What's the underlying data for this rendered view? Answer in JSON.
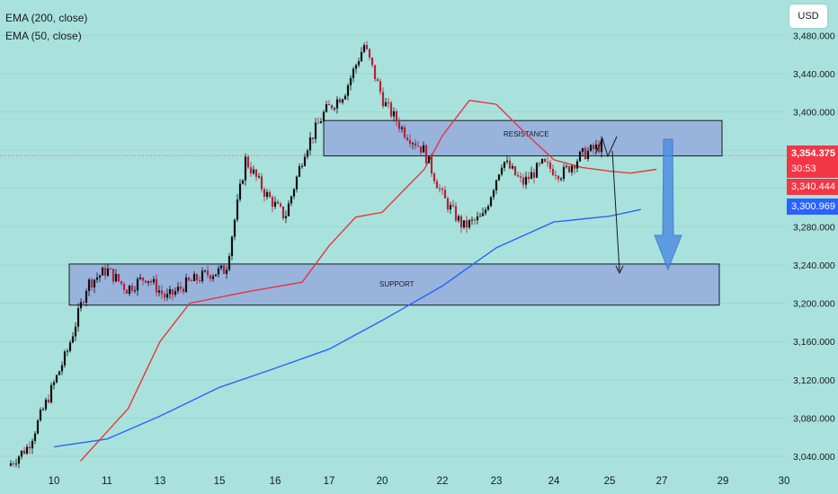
{
  "legend": {
    "ema200": "EMA (200, close)",
    "ema50": "EMA (50, close)"
  },
  "currency_button": "USD",
  "price_tags": {
    "last": "3,354.375",
    "countdown": "30:53",
    "ema50_value": "3,340.444",
    "ema200_value": "3,300.969"
  },
  "zones": {
    "resistance_label": "RESISTANCE",
    "support_label": "SUPPORT"
  },
  "colors": {
    "background": "#a9e2dd",
    "zone_fill": "#98b4dd",
    "ema50": "#e8343b",
    "ema200": "#2962ff",
    "candle_up": "#101010",
    "candle_down": "#b0243a",
    "tag_red": "#f23645",
    "tag_blue": "#2962ff",
    "arrow_blue": "#4f8fe0"
  },
  "chart_data": {
    "type": "candlestick",
    "series": [
      {
        "name": "EMA (200, close)",
        "x": [
          0,
          1,
          2,
          3,
          4,
          5,
          6,
          7,
          8,
          9,
          10,
          10.6
        ],
        "y": [
          3050,
          3058,
          3082,
          3112,
          3132,
          3152,
          3182,
          3218,
          3258,
          3285,
          3291,
          3298
        ]
      },
      {
        "name": "EMA (50, close)",
        "x": [
          0.5,
          1.4,
          2,
          2.5,
          3.5,
          4.5,
          5,
          5.5,
          6,
          6.7,
          7,
          7.5,
          8,
          8.5,
          9,
          9.5,
          10,
          10.4,
          10.9
        ],
        "y": [
          3035,
          3090,
          3160,
          3200,
          3212,
          3222,
          3260,
          3290,
          3295,
          3340,
          3375,
          3412,
          3408,
          3378,
          3350,
          3342,
          3338,
          3336,
          3340
        ]
      }
    ],
    "y_axis": {
      "range": [
        3030,
        3490
      ],
      "ticks": [
        "3,040.000",
        "3,080.000",
        "3,120.000",
        "3,160.000",
        "3,200.000",
        "3,240.000",
        "3,280.000",
        "3,320.000",
        "3,360.000",
        "3,400.000",
        "3,440.000",
        "3,480.000"
      ]
    },
    "x_axis": {
      "ticks": [
        "10",
        "11",
        "13",
        "15",
        "16",
        "17",
        "20",
        "22",
        "23",
        "24",
        "25",
        "27",
        "29",
        "30"
      ]
    },
    "current_price": 3354.375,
    "zones": [
      {
        "label": "RESISTANCE",
        "from": 3354,
        "to": 3391
      },
      {
        "label": "SUPPORT",
        "from": 3198,
        "to": 3241
      }
    ],
    "candle_path": [
      3030,
      3050,
      3100,
      3150,
      3220,
      3235,
      3215,
      3228,
      3205,
      3220,
      3230,
      3235,
      3350,
      3315,
      3290,
      3360,
      3400,
      3420,
      3470,
      3410,
      3380,
      3360,
      3310,
      3280,
      3290,
      3350,
      3325,
      3345,
      3335,
      3355,
      3365
    ]
  }
}
